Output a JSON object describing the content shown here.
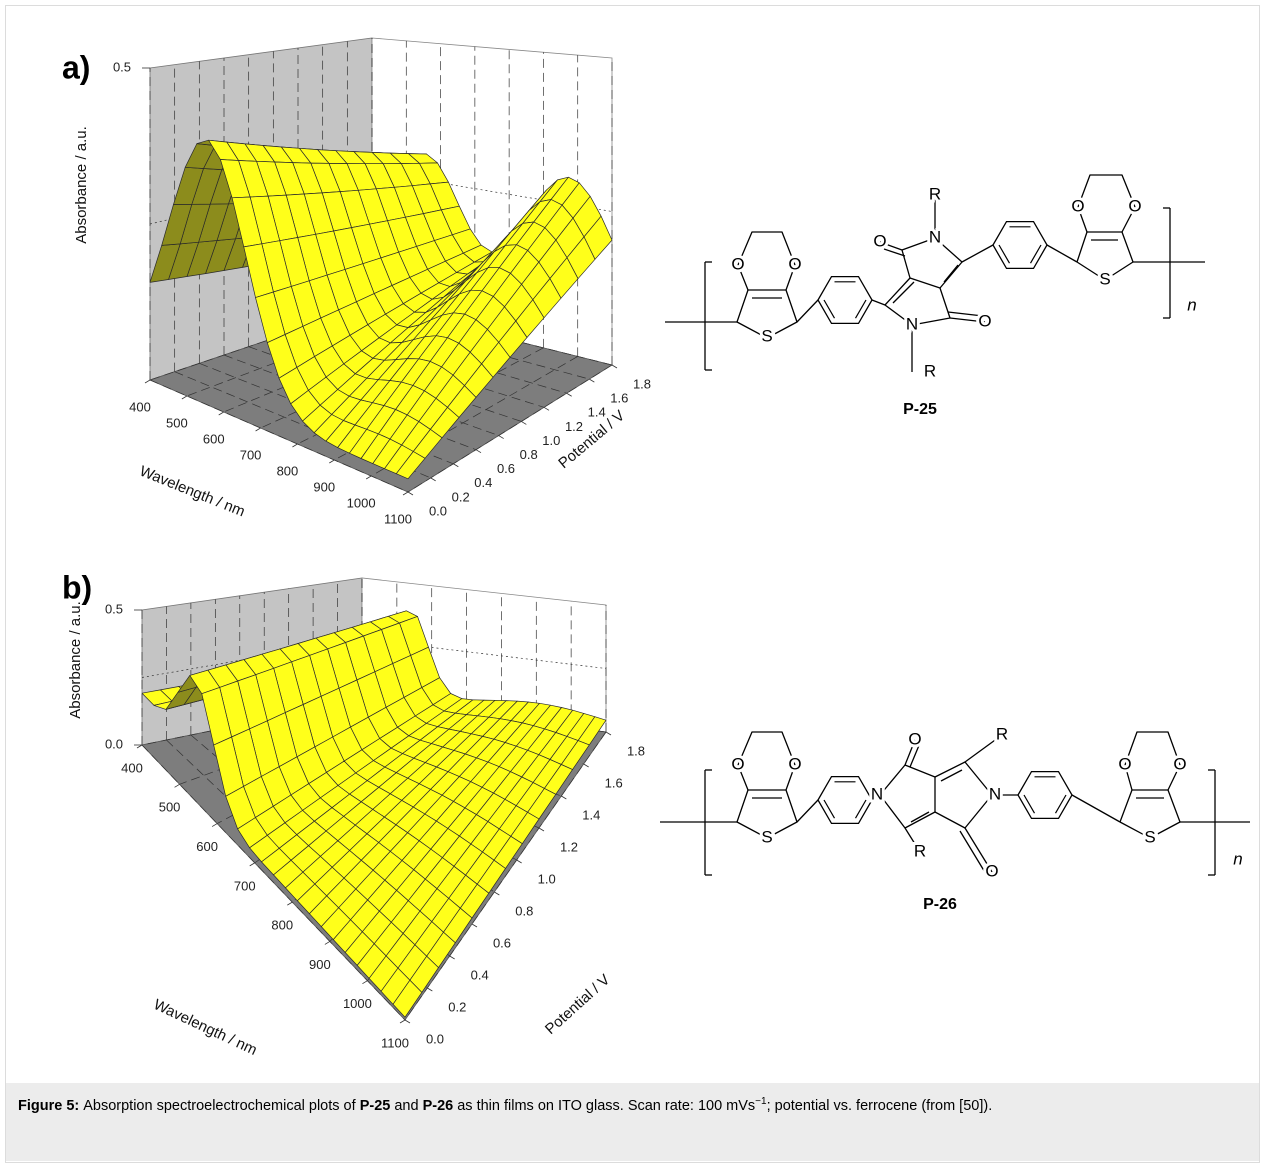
{
  "figure": {
    "panels": [
      {
        "label": "a)",
        "plot": {
          "z_axis_title": "Absorbance / a.u.",
          "z_ticks": [
            "0.5"
          ],
          "x_axis_title": "Wavelength / nm",
          "x_ticks": [
            "400",
            "500",
            "600",
            "700",
            "800",
            "900",
            "1000",
            "1100"
          ],
          "y_axis_title": "Potential / V",
          "y_ticks": [
            "0.0",
            "0.2",
            "0.4",
            "0.6",
            "0.8",
            "1.0",
            "1.2",
            "1.4",
            "1.6",
            "1.8"
          ]
        },
        "structure": {
          "name": "P-25",
          "atoms": [
            "O",
            "O",
            "S",
            "O",
            "N",
            "R",
            "N",
            "R",
            "O",
            "O",
            "O",
            "S"
          ],
          "repeat": "n"
        }
      },
      {
        "label": "b)",
        "plot": {
          "z_axis_title": "Absorbance / a.u.",
          "z_ticks": [
            "0.5",
            "0.0"
          ],
          "x_axis_title": "Wavelength / nm",
          "x_ticks": [
            "400",
            "500",
            "600",
            "700",
            "800",
            "900",
            "1000",
            "1100"
          ],
          "y_axis_title": "Potential / V",
          "y_ticks": [
            "0.0",
            "0.2",
            "0.4",
            "0.6",
            "0.8",
            "1.0",
            "1.2",
            "1.4",
            "1.6",
            "1.8"
          ]
        },
        "structure": {
          "name": "P-26",
          "atoms": [
            "O",
            "O",
            "S",
            "N",
            "O",
            "R",
            "N",
            "R",
            "O",
            "O",
            "O",
            "S"
          ],
          "repeat": "n"
        }
      }
    ]
  },
  "caption": {
    "label": "Figure 5:",
    "parts": [
      "Absorption spectroelectrochemical plots of ",
      "P-25",
      " and ",
      "P-26",
      " as thin films on ITO glass. Scan rate: 100 mVs",
      "−1",
      "; potential vs. ferrocene (from [50])."
    ]
  }
}
